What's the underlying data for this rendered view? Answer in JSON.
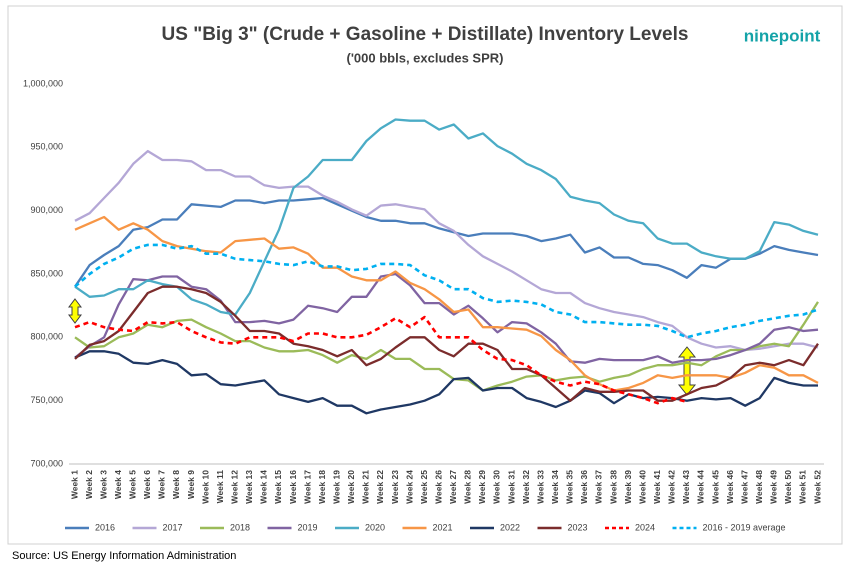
{
  "chart_data": {
    "type": "line",
    "title": "US \"Big 3\"  (Crude + Gasoline + Distillate) Inventory Levels",
    "subtitle": "('000 bbls, excludes SPR)",
    "logo": "ninepoint",
    "source": "Source: US Energy Information Administration",
    "categories": [
      "Week 1",
      "Week 2",
      "Week 3",
      "Week 4",
      "Week 5",
      "Week 6",
      "Week 7",
      "Week 8",
      "Week 9",
      "Week 10",
      "Week 11",
      "Week 12",
      "Week 13",
      "Week 14",
      "Week 15",
      "Week 16",
      "Week 17",
      "Week 18",
      "Week 19",
      "Week 20",
      "Week 21",
      "Week 22",
      "Week 23",
      "Week 24",
      "Week 25",
      "Week 26",
      "Week 27",
      "Week 28",
      "Week 29",
      "Week 30",
      "Week 31",
      "Week 32",
      "Week 33",
      "Week 34",
      "Week 35",
      "Week 36",
      "Week 37",
      "Week 38",
      "Week 39",
      "Week 40",
      "Week 41",
      "Week 42",
      "Week 43",
      "Week 44",
      "Week 45",
      "Week 46",
      "Week 47",
      "Week 48",
      "Week 49",
      "Week 50",
      "Week 51",
      "Week 52"
    ],
    "ylim": [
      700000,
      1000000
    ],
    "yticks": [
      {
        "value": 700000,
        "label": "700,000"
      },
      {
        "value": 750000,
        "label": "750,000"
      },
      {
        "value": 800000,
        "label": "800,000"
      },
      {
        "value": 850000,
        "label": "850,000"
      },
      {
        "value": 900000,
        "label": "900,000"
      },
      {
        "value": 950000,
        "label": "950,000"
      },
      {
        "value": 1000000,
        "label": "1,000,000"
      }
    ],
    "grid": false,
    "legend": "bottom",
    "series": [
      {
        "name": "2016",
        "color": "#4a7ebb",
        "dashed": false,
        "values": [
          840000,
          857000,
          865000,
          872000,
          885000,
          887000,
          893000,
          893000,
          905000,
          904000,
          903000,
          908000,
          908000,
          906000,
          908000,
          908000,
          909000,
          910000,
          905000,
          900000,
          895000,
          892000,
          892000,
          890000,
          890000,
          886000,
          883000,
          880000,
          882000,
          882000,
          882000,
          880000,
          876000,
          878000,
          881000,
          867000,
          871000,
          863000,
          863000,
          858000,
          857000,
          853000,
          847000,
          857000,
          855000,
          862000,
          862000,
          866000,
          872000,
          869000,
          867000,
          865000
        ]
      },
      {
        "name": "2017",
        "color": "#b4a7d6",
        "dashed": false,
        "values": [
          892000,
          898000,
          910000,
          922000,
          937000,
          947000,
          940000,
          940000,
          939000,
          932000,
          932000,
          927000,
          927000,
          920000,
          918000,
          919000,
          919000,
          912000,
          907000,
          901000,
          896000,
          904000,
          905000,
          903000,
          901000,
          890000,
          884000,
          873000,
          864000,
          858000,
          852000,
          845000,
          838000,
          835000,
          835000,
          827000,
          823000,
          820000,
          818000,
          816000,
          812000,
          809000,
          800000,
          795000,
          792000,
          793000,
          790000,
          791000,
          793000,
          795000,
          795000,
          792000
        ]
      },
      {
        "name": "2018",
        "color": "#9bbb59",
        "dashed": false,
        "values": [
          800000,
          792000,
          793000,
          800000,
          803000,
          810000,
          808000,
          813000,
          814000,
          808000,
          803000,
          797000,
          797000,
          792000,
          789000,
          789000,
          790000,
          786000,
          780000,
          786000,
          783000,
          790000,
          783000,
          783000,
          775000,
          775000,
          767000,
          766000,
          758000,
          762000,
          765000,
          769000,
          770000,
          766000,
          768000,
          769000,
          765000,
          768000,
          770000,
          775000,
          778000,
          778000,
          780000,
          778000,
          785000,
          790000,
          790000,
          793000,
          795000,
          793000,
          810000,
          828000
        ]
      },
      {
        "name": "2019",
        "color": "#8064a2",
        "dashed": false,
        "values": [
          784000,
          793000,
          800000,
          826000,
          846000,
          845000,
          848000,
          848000,
          840000,
          838000,
          829000,
          812000,
          812000,
          813000,
          811000,
          814000,
          825000,
          823000,
          820000,
          832000,
          832000,
          848000,
          850000,
          841000,
          827000,
          827000,
          818000,
          825000,
          815000,
          804000,
          812000,
          811000,
          804000,
          795000,
          781000,
          780000,
          783000,
          782000,
          782000,
          782000,
          785000,
          780000,
          782000,
          782000,
          783000,
          786000,
          790000,
          795000,
          806000,
          808000,
          805000,
          806000
        ]
      },
      {
        "name": "2020",
        "color": "#4bacc6",
        "dashed": false,
        "values": [
          840000,
          832000,
          833000,
          838000,
          838000,
          845000,
          842000,
          840000,
          830000,
          826000,
          820000,
          818000,
          835000,
          860000,
          885000,
          918000,
          927000,
          940000,
          940000,
          940000,
          955000,
          965000,
          972000,
          971000,
          971000,
          964000,
          968000,
          957000,
          961000,
          951000,
          945000,
          937000,
          932000,
          925000,
          911000,
          908000,
          906000,
          897000,
          892000,
          890000,
          878000,
          874000,
          874000,
          867000,
          864000,
          862000,
          862000,
          868000,
          891000,
          889000,
          884000,
          881000
        ]
      },
      {
        "name": "2021",
        "color": "#f79646",
        "dashed": false,
        "values": [
          885000,
          890000,
          895000,
          885000,
          890000,
          885000,
          876000,
          872000,
          870000,
          868000,
          867000,
          876000,
          877000,
          878000,
          870000,
          871000,
          866000,
          855000,
          855000,
          848000,
          845000,
          845000,
          852000,
          843000,
          838000,
          830000,
          820000,
          822000,
          808000,
          808000,
          807000,
          806000,
          801000,
          790000,
          782000,
          770000,
          763000,
          758000,
          760000,
          764000,
          770000,
          768000,
          770000,
          770000,
          770000,
          768000,
          772000,
          778000,
          776000,
          770000,
          770000,
          764000
        ]
      },
      {
        "name": "2022",
        "color": "#1f3864",
        "dashed": false,
        "values": [
          784000,
          789000,
          789000,
          787000,
          780000,
          779000,
          782000,
          779000,
          770000,
          771000,
          763000,
          762000,
          764000,
          766000,
          755000,
          752000,
          749000,
          752000,
          746000,
          746000,
          740000,
          743000,
          745000,
          747000,
          750000,
          755000,
          767000,
          768000,
          758000,
          760000,
          760000,
          752000,
          749000,
          745000,
          750000,
          758000,
          756000,
          748000,
          755000,
          752000,
          753000,
          752000,
          750000,
          752000,
          751000,
          752000,
          746000,
          752000,
          768000,
          764000,
          762000,
          762000
        ]
      },
      {
        "name": "2023",
        "color": "#7b2c2c",
        "dashed": false,
        "values": [
          783000,
          794000,
          797000,
          805000,
          820000,
          835000,
          840000,
          840000,
          838000,
          835000,
          828000,
          817000,
          805000,
          805000,
          803000,
          795000,
          793000,
          790000,
          785000,
          790000,
          778000,
          783000,
          792000,
          800000,
          800000,
          790000,
          785000,
          795000,
          795000,
          790000,
          775000,
          775000,
          770000,
          760000,
          750000,
          760000,
          757000,
          757000,
          758000,
          758000,
          750000,
          750000,
          755000,
          760000,
          762000,
          768000,
          778000,
          780000,
          778000,
          782000,
          778000,
          795000
        ]
      },
      {
        "name": "2024",
        "color": "#ff0000",
        "dashed": true,
        "values": [
          808000,
          812000,
          808000,
          806000,
          805000,
          812000,
          811000,
          812000,
          805000,
          800000,
          796000,
          795000,
          800000,
          800000,
          800000,
          797000,
          803000,
          803000,
          800000,
          800000,
          802000,
          808000,
          815000,
          808000,
          816000,
          800000,
          800000,
          800000,
          790000,
          783000,
          782000,
          778000,
          770000,
          765000,
          762000,
          765000,
          763000,
          758000,
          755000,
          752000,
          748000,
          752000,
          749000,
          null,
          null,
          null,
          null,
          null,
          null,
          null,
          null,
          null
        ]
      },
      {
        "name": "2016 - 2019 average",
        "color": "#00b0f0",
        "dashed": true,
        "values": [
          840000,
          850000,
          858000,
          863000,
          870000,
          873000,
          873000,
          870000,
          872000,
          866000,
          866000,
          862000,
          861000,
          860000,
          858000,
          857000,
          860000,
          856000,
          856000,
          853000,
          854000,
          858000,
          858000,
          857000,
          849000,
          845000,
          838000,
          838000,
          831000,
          828000,
          829000,
          828000,
          826000,
          820000,
          818000,
          812000,
          812000,
          811000,
          810000,
          810000,
          809000,
          805000,
          800000,
          803000,
          805000,
          808000,
          810000,
          813000,
          815000,
          817000,
          818000,
          822000
        ]
      }
    ]
  }
}
